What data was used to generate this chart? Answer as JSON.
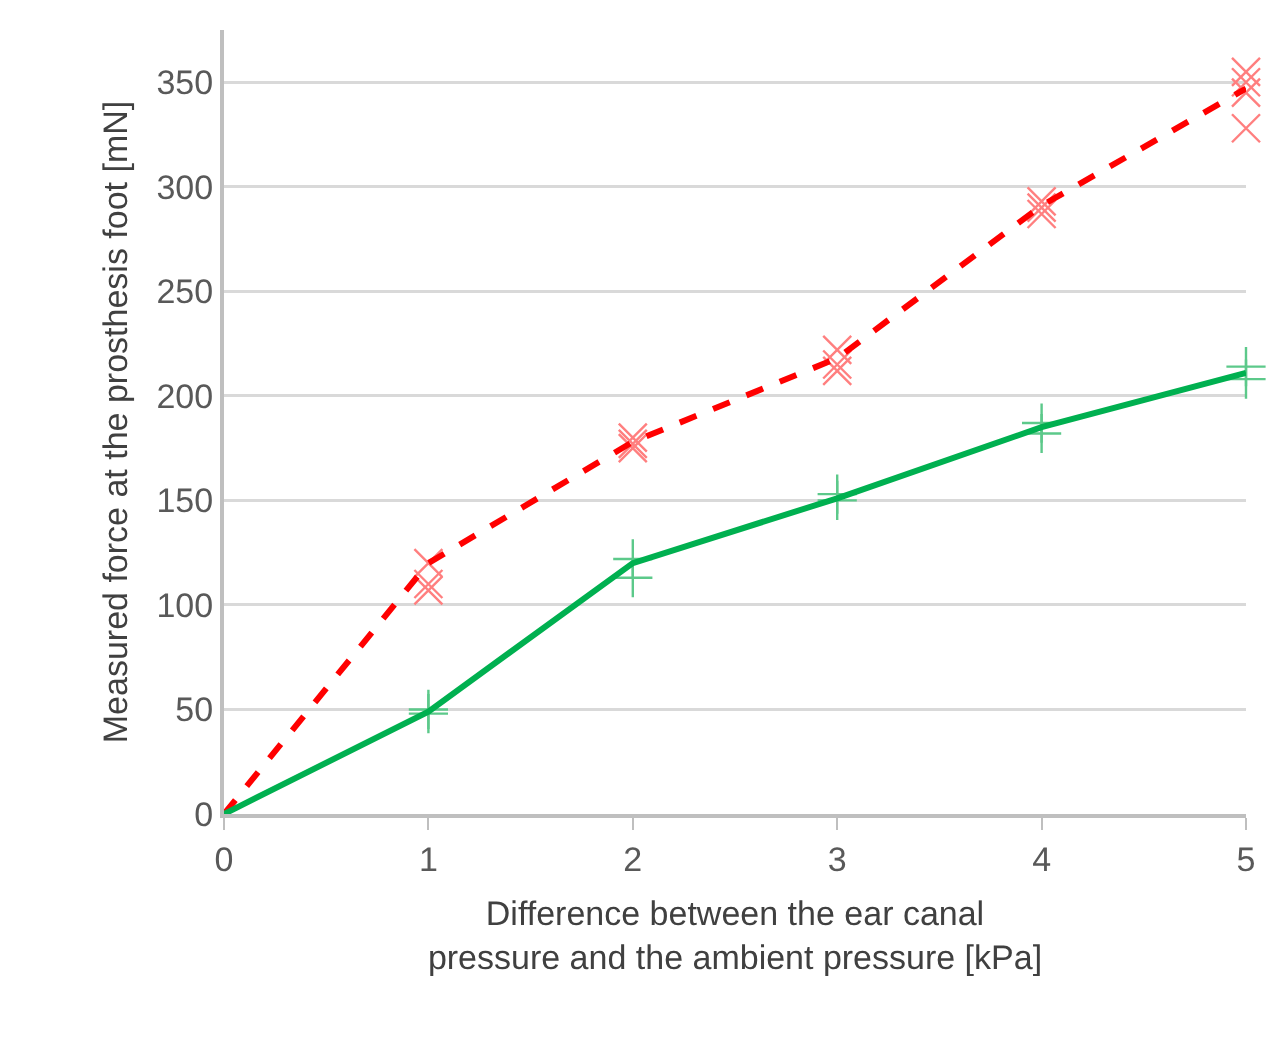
{
  "chart_data": {
    "type": "line",
    "xlabel": "Difference between the ear canal\npressure and the ambient pressure [kPa]",
    "ylabel": "Measured force at the prosthesis foot [mN]",
    "xlim": [
      0,
      5
    ],
    "xticks": [
      0,
      1,
      2,
      3,
      4,
      5
    ],
    "ylim": [
      0,
      375
    ],
    "yticks": [
      0,
      50,
      100,
      150,
      200,
      250,
      300,
      350
    ],
    "grid": "y",
    "marker": "none",
    "series": [
      {
        "type": "scatter",
        "color": "#ff7f7f",
        "marker": "x",
        "x": [
          1,
          1,
          1,
          2,
          2,
          2,
          3,
          3,
          3,
          4,
          4,
          4,
          5,
          5,
          5,
          5
        ],
        "values": [
          120,
          110,
          107,
          180,
          177,
          175,
          222,
          215,
          212,
          293,
          290,
          287,
          355,
          350,
          345,
          328
        ]
      },
      {
        "type": "scatter",
        "color": "#5cc98a",
        "marker": "cross",
        "x": [
          1,
          1,
          2,
          2,
          3,
          3,
          4,
          4,
          5,
          5
        ],
        "values": [
          50,
          48,
          122,
          113,
          153,
          150,
          187,
          182,
          214,
          208
        ]
      },
      {
        "color": "#ff0000",
        "line_style": "dashed",
        "x": [
          0,
          1,
          2,
          3,
          4,
          5
        ],
        "values": [
          0,
          120,
          178,
          218,
          291,
          347
        ]
      },
      {
        "color": "#00b050",
        "line_style": "solid",
        "x": [
          0,
          1,
          2,
          3,
          4,
          5
        ],
        "values": [
          0,
          49,
          120,
          151,
          185,
          211
        ]
      }
    ]
  }
}
